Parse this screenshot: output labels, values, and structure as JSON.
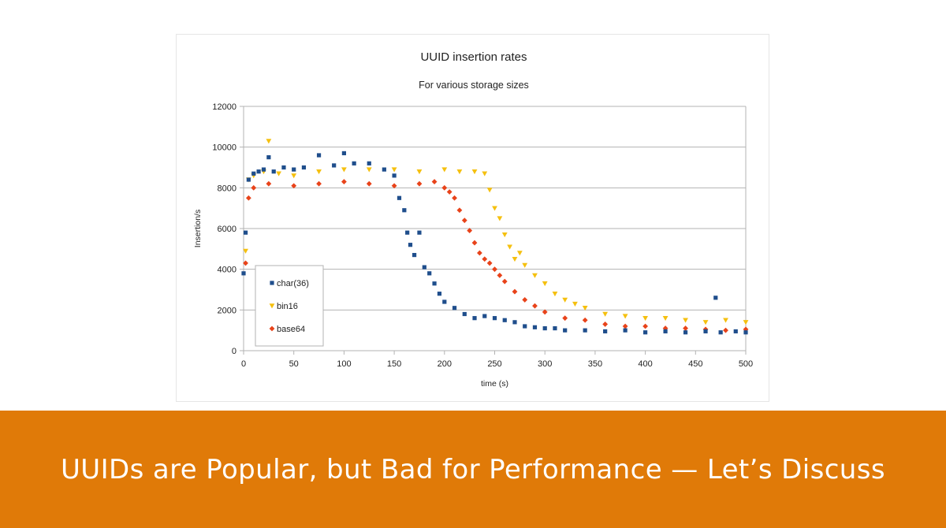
{
  "banner": {
    "title": "UUIDs are Popular, but Bad for Performance — Let’s Discuss",
    "background": "#e07a08"
  },
  "chart_data": {
    "type": "scatter",
    "title": "UUID insertion rates",
    "subtitle": "For various storage sizes",
    "xlabel": "time (s)",
    "ylabel": "Insertion/s",
    "xlim": [
      0,
      500
    ],
    "ylim": [
      0,
      12000
    ],
    "xticks": [
      0,
      50,
      100,
      150,
      200,
      250,
      300,
      350,
      400,
      450,
      500
    ],
    "yticks": [
      0,
      2000,
      4000,
      6000,
      8000,
      10000,
      12000
    ],
    "grid": "horizontal",
    "legend_position": "bottom-left inside plot",
    "series": [
      {
        "name": "char(36)",
        "color": "#1f4e8c",
        "marker": "square",
        "x": [
          0,
          2,
          5,
          10,
          15,
          20,
          25,
          30,
          40,
          50,
          60,
          75,
          90,
          100,
          110,
          125,
          140,
          150,
          155,
          160,
          163,
          166,
          170,
          175,
          180,
          185,
          190,
          195,
          200,
          210,
          220,
          230,
          240,
          250,
          260,
          270,
          280,
          290,
          300,
          310,
          320,
          340,
          360,
          380,
          400,
          420,
          440,
          460,
          470,
          475,
          490,
          500
        ],
        "y": [
          3800,
          5800,
          8400,
          8700,
          8800,
          8900,
          9500,
          8800,
          9000,
          8900,
          9000,
          9600,
          9100,
          9700,
          9200,
          9200,
          8900,
          8600,
          7500,
          6900,
          5800,
          5200,
          4700,
          5800,
          4100,
          3800,
          3300,
          2800,
          2400,
          2100,
          1800,
          1600,
          1700,
          1600,
          1500,
          1400,
          1200,
          1150,
          1100,
          1100,
          1000,
          1000,
          950,
          1000,
          900,
          950,
          900,
          950,
          2600,
          900,
          950,
          900
        ]
      },
      {
        "name": "bin16",
        "color": "#f5c00f",
        "marker": "triangle-down",
        "x": [
          2,
          5,
          10,
          20,
          25,
          35,
          50,
          75,
          100,
          125,
          150,
          175,
          200,
          215,
          230,
          240,
          245,
          250,
          255,
          260,
          265,
          270,
          275,
          280,
          290,
          300,
          310,
          320,
          330,
          340,
          360,
          380,
          400,
          420,
          440,
          460,
          480,
          500
        ],
        "y": [
          4900,
          8400,
          8600,
          8800,
          10300,
          8700,
          8600,
          8800,
          8900,
          8900,
          8900,
          8800,
          8900,
          8800,
          8800,
          8700,
          7900,
          7000,
          6500,
          5700,
          5100,
          4500,
          4800,
          4200,
          3700,
          3300,
          2800,
          2500,
          2300,
          2100,
          1800,
          1700,
          1600,
          1600,
          1500,
          1400,
          1500,
          1400
        ]
      },
      {
        "name": "base64",
        "color": "#e8431a",
        "marker": "diamond",
        "x": [
          2,
          5,
          10,
          25,
          50,
          75,
          100,
          125,
          150,
          175,
          190,
          200,
          205,
          210,
          215,
          220,
          225,
          230,
          235,
          240,
          245,
          250,
          255,
          260,
          270,
          280,
          290,
          300,
          320,
          340,
          360,
          380,
          400,
          420,
          440,
          460,
          480,
          500
        ],
        "y": [
          4300,
          7500,
          8000,
          8200,
          8100,
          8200,
          8300,
          8200,
          8100,
          8200,
          8300,
          8000,
          7800,
          7500,
          6900,
          6400,
          5900,
          5300,
          4800,
          4500,
          4300,
          4000,
          3700,
          3400,
          2900,
          2500,
          2200,
          1900,
          1600,
          1500,
          1300,
          1200,
          1200,
          1100,
          1100,
          1050,
          1000,
          1050
        ]
      }
    ]
  }
}
